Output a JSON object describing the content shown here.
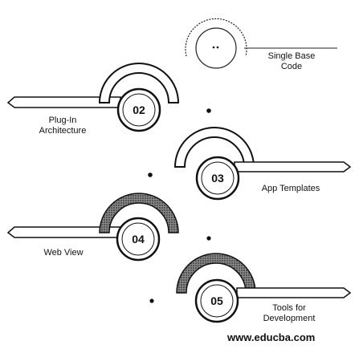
{
  "steps": [
    {
      "number": "",
      "label_line1": "Single Base",
      "label_line2": "Code"
    },
    {
      "number": "02",
      "label_line1": "Plug-In",
      "label_line2": "Architecture"
    },
    {
      "number": "03",
      "label_line1": "App Templates",
      "label_line2": ""
    },
    {
      "number": "04",
      "label_line1": "Web View",
      "label_line2": ""
    },
    {
      "number": "05",
      "label_line1": "Tools for",
      "label_line2": "Development"
    }
  ],
  "footer": {
    "website": "www.educba.com"
  },
  "colors": {
    "stroke": "#111111",
    "fill": "#ffffff",
    "textured": "#555555"
  }
}
